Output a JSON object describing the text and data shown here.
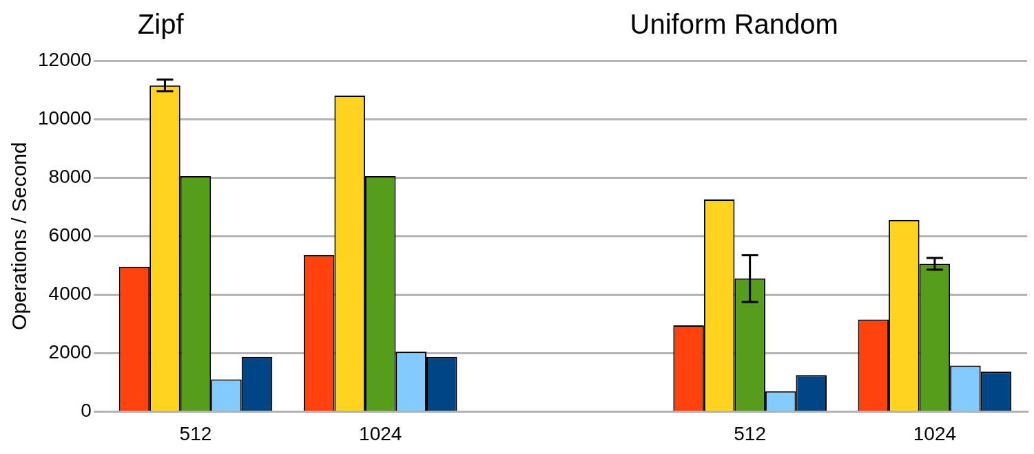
{
  "chart_data": {
    "type": "bar",
    "ylabel": "Operations / Second",
    "annotations": [
      "Zipf",
      "Uniform Random"
    ],
    "categories": [
      "512",
      "1024",
      null,
      "512",
      "1024"
    ],
    "ylim": [
      0,
      12000
    ],
    "yticks": [
      0,
      2000,
      4000,
      6000,
      8000,
      10000,
      12000
    ],
    "grid": "y",
    "series": [
      {
        "color": "#ff420e",
        "values": [
          4950,
          5350,
          null,
          2950,
          3150
        ]
      },
      {
        "color": "#ffd320",
        "values": [
          11150,
          10800,
          null,
          7250,
          6550
        ],
        "errors": [
          200,
          null,
          null,
          null,
          null
        ]
      },
      {
        "color": "#579d1c",
        "values": [
          8050,
          8050,
          null,
          4550,
          5050
        ],
        "errors": [
          null,
          null,
          null,
          [
            3750,
            5350
          ],
          200
        ]
      },
      {
        "color": "#83caff",
        "values": [
          1100,
          2050,
          null,
          700,
          1570
        ]
      },
      {
        "color": "#004586",
        "values": [
          1870,
          1870,
          null,
          1250,
          1370
        ]
      }
    ]
  }
}
